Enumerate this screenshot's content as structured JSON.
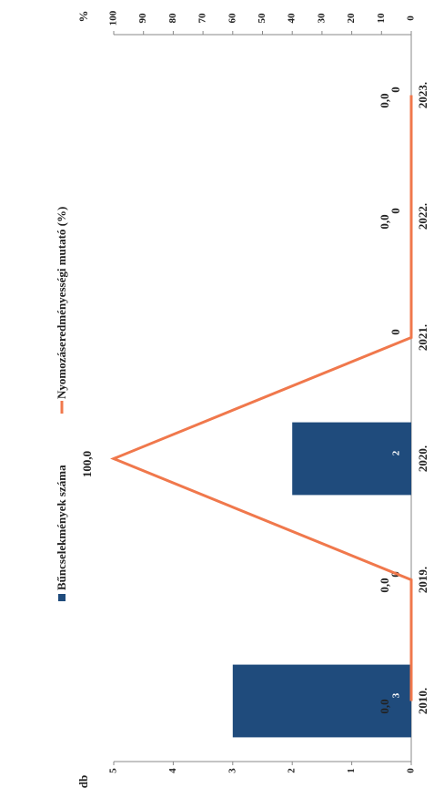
{
  "chart_data": {
    "type": "bar-line",
    "categories": [
      "2010.",
      "2019.",
      "2020.",
      "2021.",
      "2022.",
      "2023."
    ],
    "series": [
      {
        "name": "Bűncselekmények száma",
        "color": "#1f4b7c",
        "type": "bar",
        "values": [
          3,
          0,
          2,
          0,
          0,
          0
        ]
      },
      {
        "name": "Nyomozáseredményességi mutató (%)",
        "color": "#f0784c",
        "type": "line",
        "axis": "y2",
        "values": [
          0,
          0,
          100,
          0,
          0,
          0
        ],
        "value_labels": [
          "0,0",
          "0,0",
          "100,0",
          null,
          "0,0",
          "0,0"
        ]
      }
    ],
    "ylabel": "db",
    "y2label": "%",
    "ylim": [
      0,
      5
    ],
    "yticks": [
      0,
      1,
      2,
      3,
      4,
      5
    ],
    "y2lim": [
      0,
      100
    ],
    "y2ticks": [
      0,
      10,
      20,
      30,
      40,
      50,
      60,
      70,
      80,
      90,
      100
    ]
  }
}
